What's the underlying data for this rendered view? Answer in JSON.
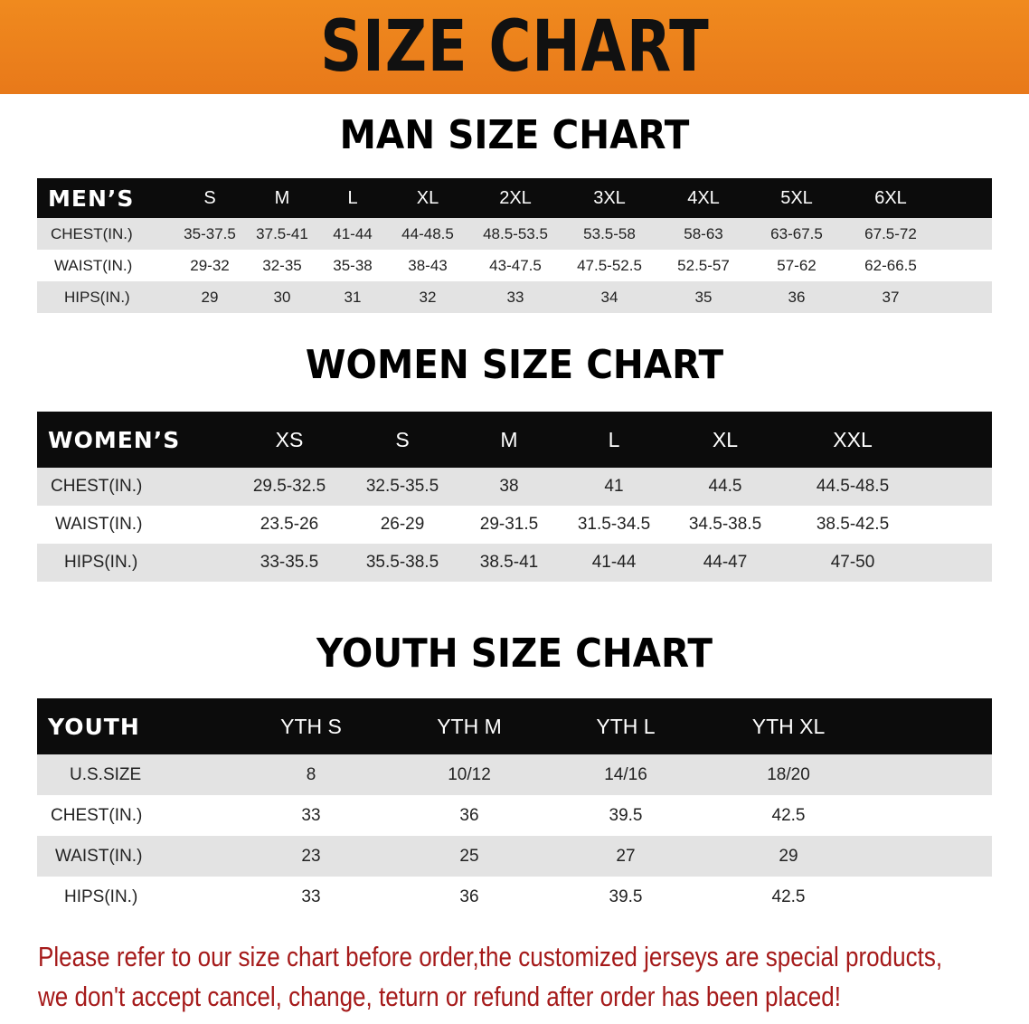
{
  "banner": "SIZE CHART",
  "men": {
    "title": "MAN SIZE CHART",
    "header": "MEN’S",
    "sizes": [
      "S",
      "M",
      "L",
      "XL",
      "2XL",
      "3XL",
      "4XL",
      "5XL",
      "6XL"
    ],
    "rows": [
      {
        "label": "CHEST(IN.)",
        "values": [
          "35-37.5",
          "37.5-41",
          "41-44",
          "44-48.5",
          "48.5-53.5",
          "53.5-58",
          "58-63",
          "63-67.5",
          "67.5-72"
        ]
      },
      {
        "label": "WAIST(IN.)",
        "values": [
          "29-32",
          "32-35",
          "35-38",
          "38-43",
          "43-47.5",
          "47.5-52.5",
          "52.5-57",
          "57-62",
          "62-66.5"
        ]
      },
      {
        "label": "HIPS(IN.)",
        "values": [
          "29",
          "30",
          "31",
          "32",
          "33",
          "34",
          "35",
          "36",
          "37"
        ]
      }
    ]
  },
  "women": {
    "title": "WOMEN SIZE CHART",
    "header": "WOMEN’S",
    "sizes": [
      "XS",
      "S",
      "M",
      "L",
      "XL",
      "XXL"
    ],
    "rows": [
      {
        "label": "CHEST(IN.)",
        "values": [
          "29.5-32.5",
          "32.5-35.5",
          "38",
          "41",
          "44.5",
          "44.5-48.5"
        ]
      },
      {
        "label": "WAIST(IN.)",
        "values": [
          "23.5-26",
          "26-29",
          "29-31.5",
          "31.5-34.5",
          "34.5-38.5",
          "38.5-42.5"
        ]
      },
      {
        "label": "HIPS(IN.)",
        "values": [
          "33-35.5",
          "35.5-38.5",
          "38.5-41",
          "41-44",
          "44-47",
          "47-50"
        ]
      }
    ]
  },
  "youth": {
    "title": "YOUTH SIZE CHART",
    "header": "YOUTH",
    "sizes": [
      "YTH S",
      "YTH M",
      "YTH L",
      "YTH XL"
    ],
    "rows": [
      {
        "label": "U.S.SIZE",
        "values": [
          "8",
          "10/12",
          "14/16",
          "18/20"
        ]
      },
      {
        "label": "CHEST(IN.)",
        "values": [
          "33",
          "36",
          "39.5",
          "42.5"
        ]
      },
      {
        "label": "WAIST(IN.)",
        "values": [
          "23",
          "25",
          "27",
          "29"
        ]
      },
      {
        "label": "HIPS(IN.)",
        "values": [
          "33",
          "36",
          "39.5",
          "42.5"
        ]
      }
    ]
  },
  "notice": [
    "Please refer to our size chart before order,the customized jerseys are special products,",
    "we don't accept cancel, change, teturn or refund after order has been placed!"
  ]
}
